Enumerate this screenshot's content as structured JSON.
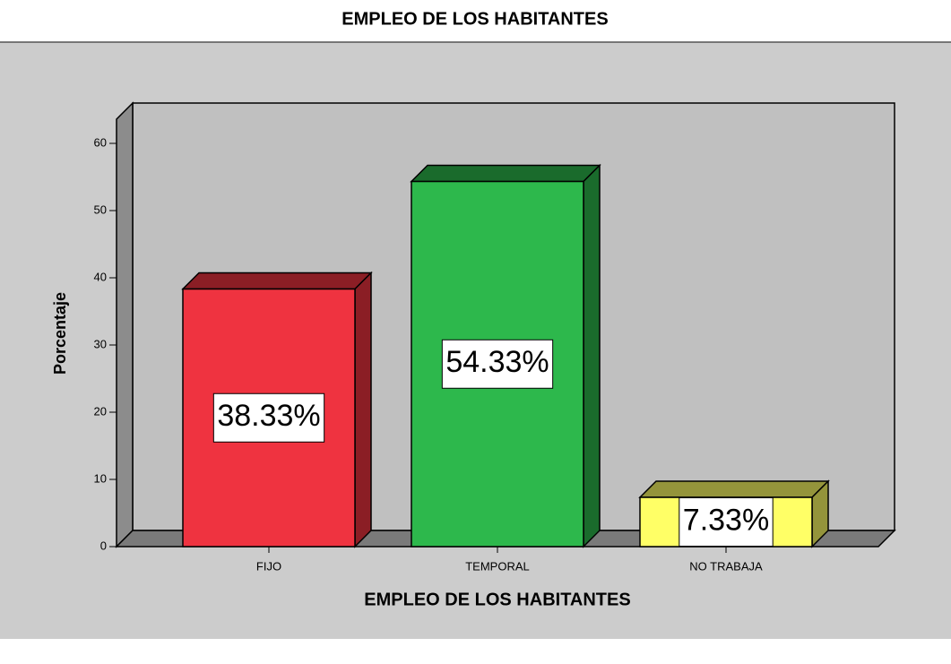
{
  "chart_data": {
    "type": "bar3d",
    "title": "EMPLEO DE LOS HABITANTES",
    "x_label": "EMPLEO DE LOS HABITANTES",
    "y_label": "Porcentaje",
    "categories": [
      "FIJO",
      "TEMPORAL",
      "NO TRABAJA"
    ],
    "values": [
      38.33,
      54.33,
      7.33
    ],
    "value_labels": [
      "38.33%",
      "54.33%",
      "7.33%"
    ],
    "colors": [
      "#ef3340",
      "#2db84c",
      "#ffff66"
    ],
    "ylim": [
      0,
      64
    ],
    "yticks": [
      0,
      10,
      20,
      30,
      40,
      50,
      60
    ]
  }
}
